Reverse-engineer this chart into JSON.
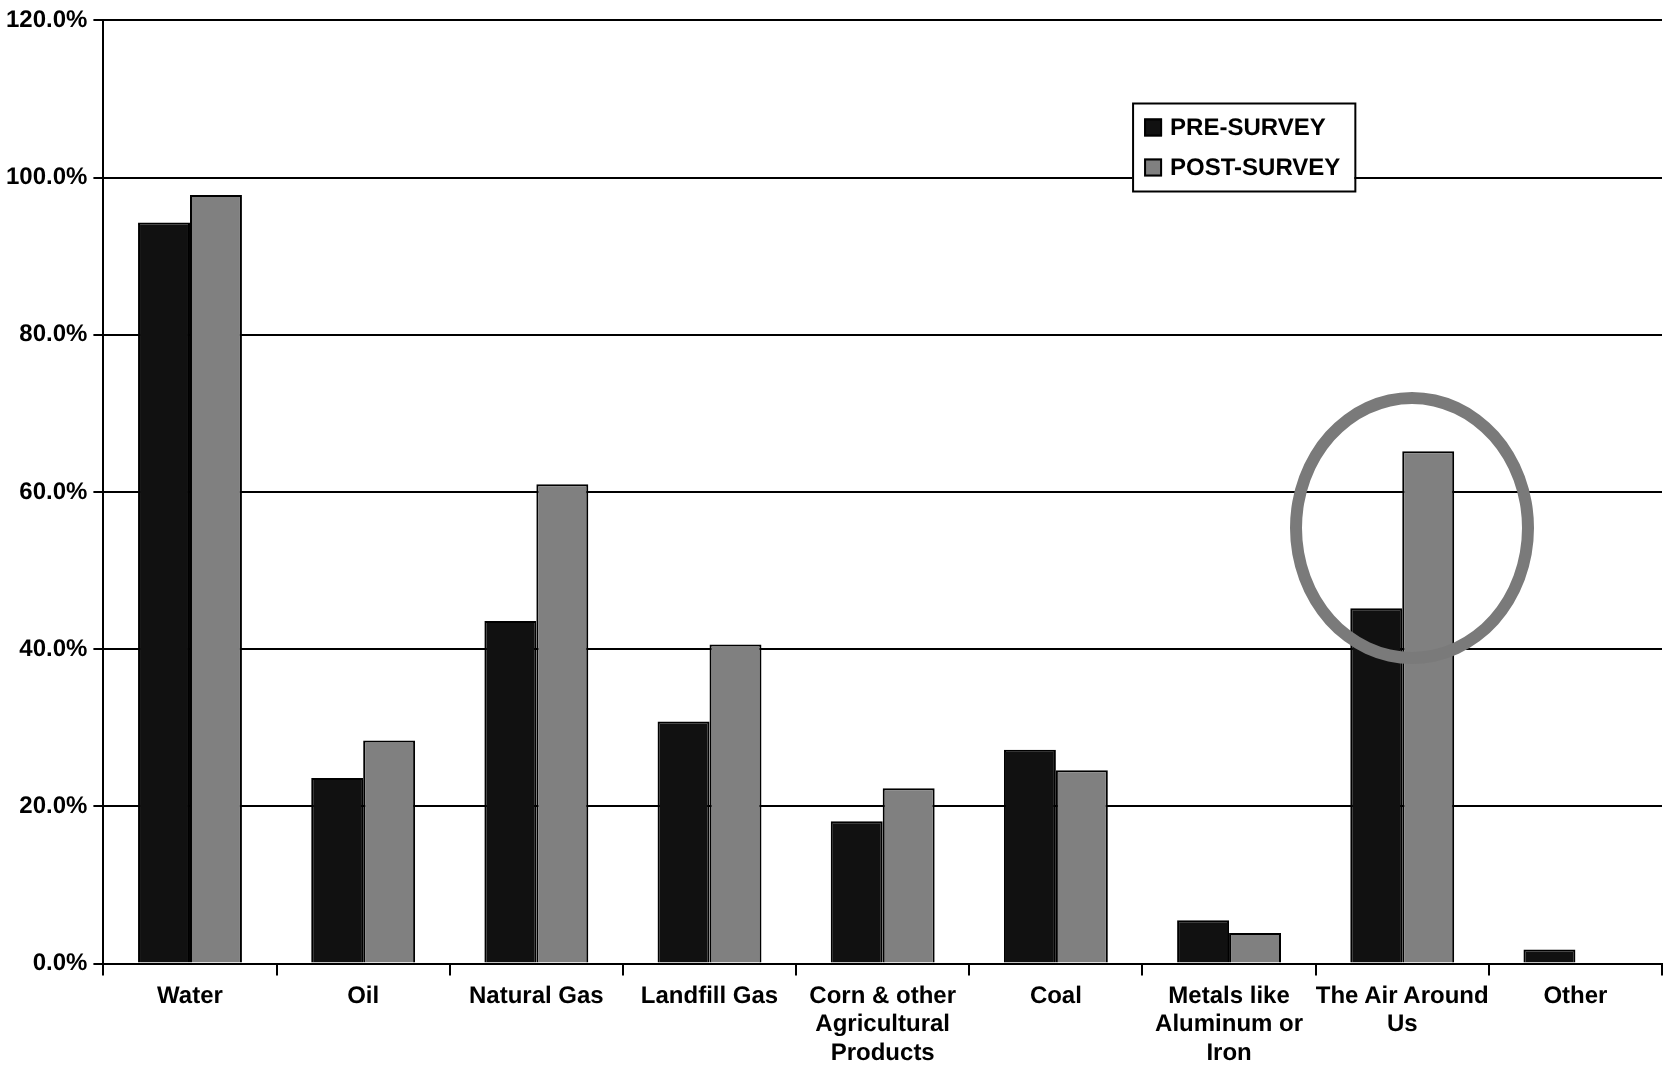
{
  "chart_data": {
    "type": "bar",
    "categories": [
      "Water",
      "Oil",
      "Natural Gas",
      "Landfill Gas",
      "Corn & other Agricultural Products",
      "Coal",
      "Metals like Aluminum or Iron",
      "The Air Around Us",
      "Other"
    ],
    "series": [
      {
        "name": "PRE-SURVEY",
        "color": "#111111",
        "values": [
          94.3,
          23.6,
          43.6,
          30.8,
          18.1,
          27.2,
          5.5,
          45.2,
          1.8
        ]
      },
      {
        "name": "POST-SURVEY",
        "color": "#808080",
        "values": [
          97.8,
          28.4,
          61.0,
          40.6,
          22.3,
          24.6,
          3.9,
          65.2,
          0
        ]
      }
    ],
    "ylim": [
      0,
      120
    ],
    "yticks": [
      {
        "value": 0,
        "label": "0.0%"
      },
      {
        "value": 20,
        "label": "20.0%"
      },
      {
        "value": 40,
        "label": "40.0%"
      },
      {
        "value": 60,
        "label": "60.0%"
      },
      {
        "value": 80,
        "label": "80.0%"
      },
      {
        "value": 100,
        "label": "100.0%"
      },
      {
        "value": 120,
        "label": "120.0%"
      }
    ],
    "grid": "y",
    "legend": "top right"
  }
}
